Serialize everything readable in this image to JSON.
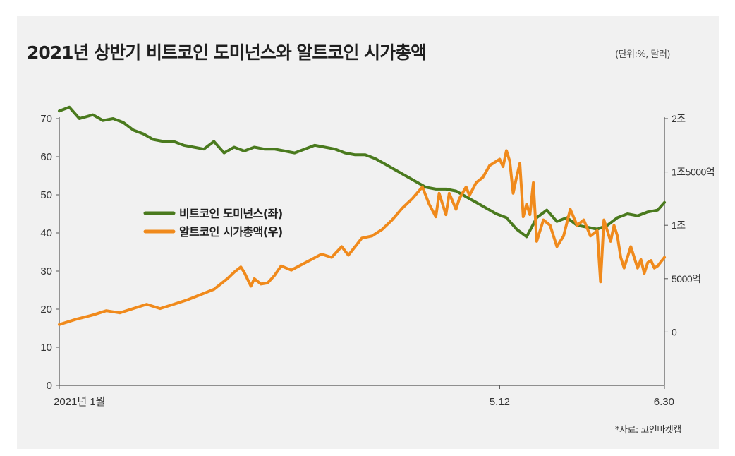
{
  "title": "2021년 상반기 비트코인 도미넌스와 알트코인 시가총액",
  "unit_note": "(단위:%, 달러)",
  "source_note": "*자료: 코인마켓캡",
  "colors": {
    "dominance": "#4a7a1e",
    "altcap": "#f08a1c",
    "axis": "#555555",
    "background": "#f1f1f1"
  },
  "chart_data": {
    "type": "line",
    "x_tick_labels": [
      "2021년 1월",
      "5.12",
      "6.30"
    ],
    "x_tick_positions_day": [
      0,
      131,
      180
    ],
    "left_axis": {
      "ylim": [
        0,
        70
      ],
      "ticks": [
        0,
        10,
        20,
        30,
        40,
        50,
        60,
        70
      ],
      "tick_labels": [
        "0",
        "10",
        "20",
        "30",
        "40",
        "50",
        "60",
        "70"
      ]
    },
    "right_axis": {
      "ylim": [
        -5000,
        20000
      ],
      "ticks": [
        0,
        5000,
        10000,
        15000,
        20000
      ],
      "tick_labels": [
        "0",
        "5000억",
        "1조",
        "1조5000억",
        "2조"
      ]
    },
    "legend_position": "center-left",
    "series": [
      {
        "name": "비트코인 도미넌스(좌)",
        "axis": "left",
        "x": [
          0,
          3,
          6,
          10,
          13,
          16,
          19,
          22,
          25,
          28,
          31,
          34,
          37,
          40,
          43,
          46,
          49,
          52,
          55,
          58,
          61,
          64,
          67,
          70,
          73,
          76,
          79,
          82,
          85,
          88,
          91,
          94,
          97,
          100,
          103,
          106,
          109,
          112,
          115,
          118,
          121,
          124,
          127,
          130,
          133,
          136,
          139,
          142,
          145,
          148,
          151,
          154,
          157,
          160,
          163,
          166,
          169,
          172,
          175,
          178,
          180
        ],
        "y": [
          72,
          73,
          70,
          71,
          69.5,
          70,
          69,
          67,
          66,
          64.5,
          64,
          64,
          63,
          62.5,
          62,
          64,
          61,
          62.5,
          61.5,
          62.5,
          62,
          62,
          61.5,
          61,
          62,
          63,
          62.5,
          62,
          61,
          60.5,
          60.5,
          59.5,
          58,
          56.5,
          55,
          53.5,
          52,
          51.5,
          51.5,
          51,
          49.5,
          48,
          46.5,
          45,
          44,
          41,
          39,
          44,
          46,
          43,
          44,
          42,
          41.5,
          41,
          42,
          44,
          45,
          44.5,
          45.5,
          46,
          48
        ]
      },
      {
        "name": "알트코인 시가총액(우)",
        "axis": "right",
        "x": [
          0,
          5,
          10,
          14,
          18,
          22,
          26,
          30,
          34,
          38,
          42,
          46,
          50,
          52,
          54,
          55,
          57,
          58,
          60,
          62,
          64,
          66,
          69,
          72,
          75,
          78,
          81,
          84,
          86,
          88,
          90,
          93,
          96,
          99,
          102,
          105,
          108,
          110,
          112,
          113,
          115,
          116,
          118,
          119,
          121,
          122,
          124,
          126,
          128,
          130,
          131,
          132,
          133,
          134,
          135,
          136,
          137,
          138,
          139,
          140,
          141,
          142,
          144,
          146,
          148,
          150,
          152,
          154,
          156,
          158,
          160,
          161,
          162,
          163,
          164,
          165,
          166,
          167,
          168,
          170,
          171,
          172,
          173,
          174,
          175,
          176,
          177,
          178,
          179,
          180
        ],
        "y": [
          700,
          1200,
          1600,
          2000,
          1800,
          2200,
          2600,
          2200,
          2600,
          3000,
          3500,
          4000,
          5000,
          5600,
          6100,
          5600,
          4300,
          5000,
          4500,
          4600,
          5300,
          6200,
          5800,
          6300,
          6800,
          7300,
          7000,
          8000,
          7200,
          8000,
          8800,
          9000,
          9600,
          10500,
          11600,
          12500,
          13600,
          12000,
          10800,
          13000,
          11000,
          13000,
          11500,
          12500,
          13600,
          12800,
          14000,
          14500,
          15600,
          16000,
          16200,
          15500,
          17000,
          16000,
          13000,
          14500,
          15800,
          10800,
          12000,
          11000,
          14000,
          8500,
          10500,
          10000,
          8000,
          9000,
          11500,
          10000,
          10500,
          9000,
          9500,
          4700,
          10500,
          9500,
          8500,
          10000,
          9000,
          7000,
          6000,
          8000,
          7000,
          6000,
          6800,
          5500,
          6500,
          6700,
          6000,
          6200,
          6600,
          7000
        ]
      }
    ]
  }
}
